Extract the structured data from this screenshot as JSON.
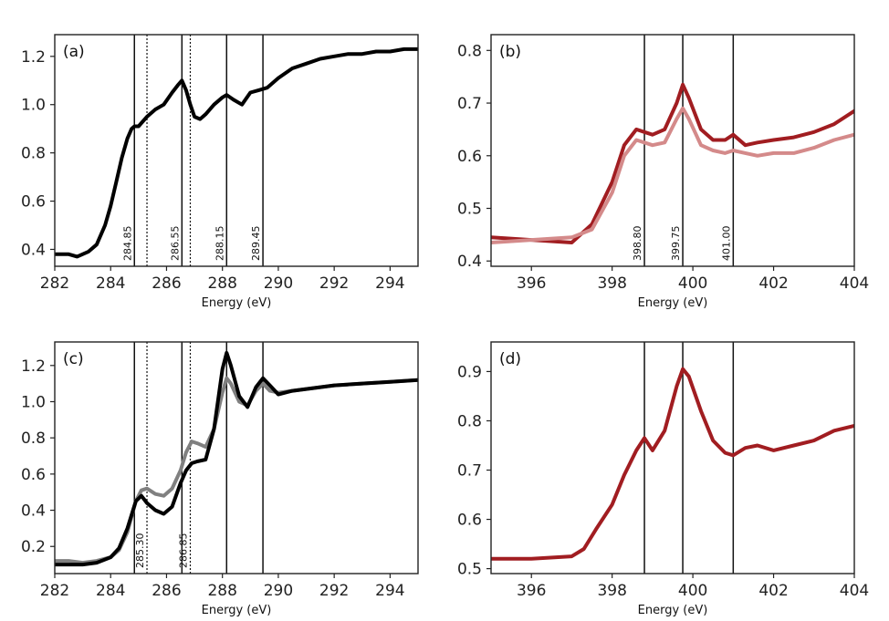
{
  "figure": {
    "background": "#ffffff"
  },
  "chart_data": [
    {
      "id": "a",
      "type": "line",
      "panel_label": "(a)",
      "xlabel": "Energy (eV)",
      "ylabel": "",
      "xlim": [
        282,
        295
      ],
      "ylim": [
        0.33,
        1.29
      ],
      "xticks": [
        282,
        284,
        286,
        288,
        290,
        292,
        294
      ],
      "yticks": [
        0.4,
        0.6,
        0.8,
        1.0,
        1.2
      ],
      "ytick_labels": [
        "0.4",
        "0.6",
        "0.8",
        "1.0",
        "1.2"
      ],
      "vlines": [
        {
          "x": 284.85,
          "style": "solid",
          "label": "284.85"
        },
        {
          "x": 285.3,
          "style": "dotted",
          "label": ""
        },
        {
          "x": 286.55,
          "style": "solid",
          "label": "286.55"
        },
        {
          "x": 286.85,
          "style": "dotted",
          "label": ""
        },
        {
          "x": 288.15,
          "style": "solid",
          "label": "288.15"
        },
        {
          "x": 289.45,
          "style": "solid",
          "label": "289.45"
        }
      ],
      "series": [
        {
          "name": "spectrum",
          "color": "#000000",
          "x": [
            282.0,
            282.5,
            282.8,
            283.2,
            283.5,
            283.8,
            284.0,
            284.2,
            284.4,
            284.6,
            284.75,
            284.85,
            285.0,
            285.3,
            285.6,
            285.9,
            286.2,
            286.4,
            286.55,
            286.7,
            286.85,
            287.0,
            287.2,
            287.4,
            287.7,
            288.0,
            288.15,
            288.4,
            288.7,
            289.0,
            289.3,
            289.6,
            290.0,
            290.5,
            291.0,
            291.5,
            292.0,
            292.5,
            293.0,
            293.5,
            294.0,
            294.5,
            295.0
          ],
          "y": [
            0.38,
            0.38,
            0.37,
            0.39,
            0.42,
            0.5,
            0.58,
            0.68,
            0.78,
            0.86,
            0.9,
            0.91,
            0.91,
            0.95,
            0.98,
            1.0,
            1.05,
            1.08,
            1.1,
            1.06,
            1.0,
            0.95,
            0.94,
            0.96,
            1.0,
            1.03,
            1.04,
            1.02,
            1.0,
            1.05,
            1.06,
            1.07,
            1.11,
            1.15,
            1.17,
            1.19,
            1.2,
            1.21,
            1.21,
            1.22,
            1.22,
            1.23,
            1.23
          ]
        }
      ]
    },
    {
      "id": "b",
      "type": "line",
      "panel_label": "(b)",
      "xlabel": "Energy (eV)",
      "ylabel": "",
      "xlim": [
        395,
        404
      ],
      "ylim": [
        0.39,
        0.83
      ],
      "xticks": [
        396,
        398,
        400,
        402,
        404
      ],
      "yticks": [
        0.4,
        0.5,
        0.6,
        0.7,
        0.8
      ],
      "ytick_labels": [
        "0.4",
        "0.5",
        "0.6",
        "0.7",
        "0.8"
      ],
      "vlines": [
        {
          "x": 398.8,
          "style": "solid",
          "label": "398.80"
        },
        {
          "x": 399.75,
          "style": "solid",
          "label": "399.75"
        },
        {
          "x": 401.0,
          "style": "solid",
          "label": "401.00"
        }
      ],
      "series": [
        {
          "name": "dark",
          "color": "#a11d21",
          "x": [
            395.0,
            396.0,
            397.0,
            397.5,
            398.0,
            398.3,
            398.6,
            398.8,
            399.0,
            399.3,
            399.6,
            399.75,
            399.9,
            400.2,
            400.5,
            400.8,
            401.0,
            401.3,
            401.6,
            402.0,
            402.5,
            403.0,
            403.5,
            404.0
          ],
          "y": [
            0.445,
            0.44,
            0.435,
            0.47,
            0.55,
            0.62,
            0.65,
            0.645,
            0.64,
            0.65,
            0.7,
            0.735,
            0.71,
            0.65,
            0.63,
            0.63,
            0.64,
            0.62,
            0.625,
            0.63,
            0.635,
            0.645,
            0.66,
            0.685
          ]
        },
        {
          "name": "light",
          "color": "#d48a8a",
          "x": [
            395.0,
            396.0,
            397.0,
            397.5,
            398.0,
            398.3,
            398.6,
            398.8,
            399.0,
            399.3,
            399.6,
            399.75,
            399.9,
            400.2,
            400.5,
            400.8,
            401.0,
            401.3,
            401.6,
            402.0,
            402.5,
            403.0,
            403.5,
            404.0
          ],
          "y": [
            0.435,
            0.44,
            0.445,
            0.46,
            0.53,
            0.6,
            0.63,
            0.625,
            0.62,
            0.625,
            0.67,
            0.69,
            0.67,
            0.62,
            0.61,
            0.605,
            0.61,
            0.605,
            0.6,
            0.605,
            0.605,
            0.615,
            0.63,
            0.64
          ]
        }
      ]
    },
    {
      "id": "c",
      "type": "line",
      "panel_label": "(c)",
      "xlabel": "Energy (eV)",
      "ylabel": "",
      "xlim": [
        282,
        295
      ],
      "ylim": [
        0.05,
        1.33
      ],
      "xticks": [
        282,
        284,
        286,
        288,
        290,
        292,
        294
      ],
      "yticks": [
        0.2,
        0.4,
        0.6,
        0.8,
        1.0,
        1.2
      ],
      "ytick_labels": [
        "0.2",
        "0.4",
        "0.6",
        "0.8",
        "1.0",
        "1.2"
      ],
      "vlines": [
        {
          "x": 284.85,
          "style": "solid",
          "label": ""
        },
        {
          "x": 285.3,
          "style": "dotted",
          "label": "285.30"
        },
        {
          "x": 286.55,
          "style": "solid",
          "label": ""
        },
        {
          "x": 286.85,
          "style": "dotted",
          "label": "286.85"
        },
        {
          "x": 288.15,
          "style": "solid",
          "label": ""
        },
        {
          "x": 289.45,
          "style": "solid",
          "label": ""
        }
      ],
      "series": [
        {
          "name": "gray",
          "color": "#808080",
          "x": [
            282.0,
            282.5,
            283.0,
            283.5,
            284.0,
            284.3,
            284.6,
            284.9,
            285.1,
            285.3,
            285.6,
            285.9,
            286.2,
            286.5,
            286.7,
            286.9,
            287.1,
            287.4,
            287.7,
            288.0,
            288.15,
            288.3,
            288.6,
            288.9,
            289.2,
            289.45,
            289.7,
            290.0,
            290.5,
            291.0,
            292.0,
            293.0,
            294.0,
            295.0
          ],
          "y": [
            0.12,
            0.12,
            0.11,
            0.12,
            0.14,
            0.18,
            0.28,
            0.45,
            0.51,
            0.52,
            0.49,
            0.48,
            0.52,
            0.62,
            0.72,
            0.78,
            0.77,
            0.75,
            0.85,
            1.05,
            1.13,
            1.1,
            1.0,
            0.98,
            1.06,
            1.1,
            1.06,
            1.05,
            1.06,
            1.07,
            1.09,
            1.1,
            1.11,
            1.12
          ]
        },
        {
          "name": "black",
          "color": "#000000",
          "x": [
            282.0,
            282.5,
            283.0,
            283.5,
            284.0,
            284.3,
            284.6,
            284.9,
            285.1,
            285.3,
            285.6,
            285.9,
            286.2,
            286.5,
            286.7,
            286.9,
            287.1,
            287.4,
            287.7,
            288.0,
            288.15,
            288.3,
            288.6,
            288.9,
            289.2,
            289.45,
            289.7,
            290.0,
            290.5,
            291.0,
            292.0,
            293.0,
            294.0,
            295.0
          ],
          "y": [
            0.1,
            0.1,
            0.1,
            0.11,
            0.14,
            0.19,
            0.3,
            0.45,
            0.48,
            0.44,
            0.4,
            0.38,
            0.42,
            0.55,
            0.62,
            0.66,
            0.67,
            0.68,
            0.85,
            1.18,
            1.27,
            1.2,
            1.03,
            0.97,
            1.08,
            1.13,
            1.09,
            1.04,
            1.06,
            1.07,
            1.09,
            1.1,
            1.11,
            1.12
          ]
        }
      ]
    },
    {
      "id": "d",
      "type": "line",
      "panel_label": "(d)",
      "xlabel": "Energy (eV)",
      "ylabel": "",
      "xlim": [
        395,
        404
      ],
      "ylim": [
        0.49,
        0.96
      ],
      "xticks": [
        396,
        398,
        400,
        402,
        404
      ],
      "yticks": [
        0.5,
        0.6,
        0.7,
        0.8,
        0.9
      ],
      "ytick_labels": [
        "0.5",
        "0.6",
        "0.7",
        "0.8",
        "0.9"
      ],
      "vlines": [
        {
          "x": 398.8,
          "style": "solid",
          "label": ""
        },
        {
          "x": 399.75,
          "style": "solid",
          "label": ""
        },
        {
          "x": 401.0,
          "style": "solid",
          "label": ""
        }
      ],
      "series": [
        {
          "name": "red",
          "color": "#a11d21",
          "x": [
            395.0,
            396.0,
            397.0,
            397.3,
            397.6,
            398.0,
            398.3,
            398.6,
            398.8,
            399.0,
            399.3,
            399.6,
            399.75,
            399.9,
            400.2,
            400.5,
            400.8,
            401.0,
            401.3,
            401.6,
            402.0,
            402.5,
            403.0,
            403.5,
            404.0
          ],
          "y": [
            0.52,
            0.52,
            0.525,
            0.54,
            0.58,
            0.63,
            0.69,
            0.74,
            0.765,
            0.74,
            0.78,
            0.87,
            0.905,
            0.89,
            0.82,
            0.76,
            0.735,
            0.73,
            0.745,
            0.75,
            0.74,
            0.75,
            0.76,
            0.78,
            0.79
          ]
        }
      ]
    }
  ]
}
